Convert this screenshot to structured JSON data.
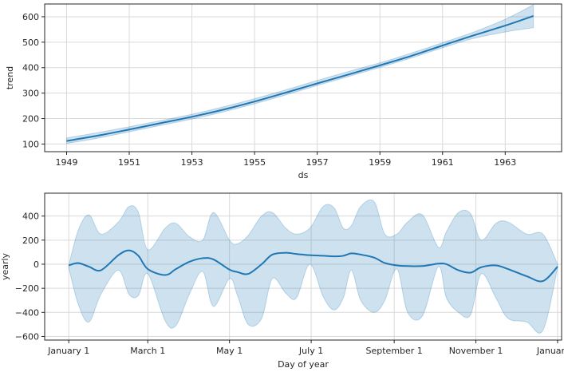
{
  "chart_data": [
    {
      "type": "line",
      "xlabel": "ds",
      "ylabel": "trend",
      "x_ticks": [
        "1949",
        "1951",
        "1953",
        "1955",
        "1957",
        "1959",
        "1961",
        "1963"
      ],
      "y_ticks": [
        "100",
        "200",
        "300",
        "400",
        "500",
        "600"
      ],
      "xlim": [
        1948.3,
        1964.8
      ],
      "ylim": [
        70,
        650
      ],
      "grid": true,
      "color": "#1f77b4",
      "band_color": "#1f77b4",
      "series": [
        {
          "x": [
            1949,
            1950,
            1951,
            1952,
            1953,
            1954,
            1955,
            1956,
            1957,
            1958,
            1959,
            1960,
            1961,
            1962,
            1963,
            1963.9
          ],
          "values": [
            112,
            133,
            157,
            182,
            207,
            235,
            267,
            302,
            338,
            373,
            409,
            446,
            487,
            527,
            565,
            603
          ],
          "lower": [
            102,
            123,
            148,
            173,
            198,
            226,
            258,
            293,
            330,
            365,
            401,
            438,
            478,
            515,
            540,
            557
          ],
          "upper": [
            124,
            145,
            168,
            192,
            217,
            246,
            278,
            313,
            350,
            385,
            419,
            457,
            498,
            540,
            590,
            647
          ]
        }
      ]
    },
    {
      "type": "line",
      "xlabel": "Day of year",
      "ylabel": "yearly",
      "x_ticks": [
        "January 1",
        "March 1",
        "May 1",
        "July 1",
        "September 1",
        "November 1",
        "January 1"
      ],
      "x_tick_days": [
        0,
        59,
        120,
        181,
        243,
        304,
        365
      ],
      "y_ticks": [
        "−600",
        "−400",
        "−200",
        "0",
        "200",
        "400"
      ],
      "y_tick_values": [
        -600,
        -400,
        -200,
        0,
        200,
        400
      ],
      "xlim": [
        -18,
        368
      ],
      "ylim": [
        -630,
        590
      ],
      "grid": true,
      "color": "#1f77b4",
      "band_color": "#1f77b4",
      "series": [
        {
          "x": [
            0,
            7,
            15,
            24,
            37,
            45,
            52,
            59,
            72,
            80,
            90,
            100,
            108,
            120,
            126,
            134,
            144,
            152,
            162,
            170,
            180,
            190,
            198,
            205,
            211,
            218,
            228,
            236,
            245,
            253,
            264,
            276,
            282,
            291,
            300,
            308,
            319,
            328,
            342,
            354,
            365
          ],
          "values": [
            -10,
            10,
            -20,
            -50,
            75,
            115,
            70,
            -40,
            -90,
            -40,
            20,
            50,
            40,
            -45,
            -65,
            -80,
            0,
            80,
            95,
            85,
            75,
            70,
            65,
            70,
            90,
            80,
            55,
            10,
            -10,
            -15,
            -15,
            5,
            0,
            -50,
            -70,
            -25,
            -10,
            -40,
            -100,
            -140,
            -20
          ],
          "lower": [
            -30,
            -330,
            -480,
            -250,
            -50,
            -250,
            -260,
            -80,
            -470,
            -510,
            -250,
            -60,
            -350,
            -120,
            -260,
            -500,
            -450,
            -120,
            -240,
            -280,
            0,
            -270,
            -380,
            -280,
            -50,
            -300,
            -400,
            -300,
            -40,
            -400,
            -430,
            -20,
            -280,
            -400,
            -420,
            -80,
            -280,
            -450,
            -480,
            -550,
            -30
          ],
          "upper": [
            -10,
            280,
            410,
            250,
            350,
            480,
            430,
            120,
            300,
            340,
            230,
            200,
            430,
            200,
            170,
            240,
            400,
            430,
            300,
            250,
            300,
            480,
            470,
            300,
            320,
            480,
            520,
            250,
            250,
            350,
            410,
            140,
            270,
            430,
            420,
            200,
            340,
            350,
            250,
            250,
            0
          ]
        }
      ]
    }
  ]
}
